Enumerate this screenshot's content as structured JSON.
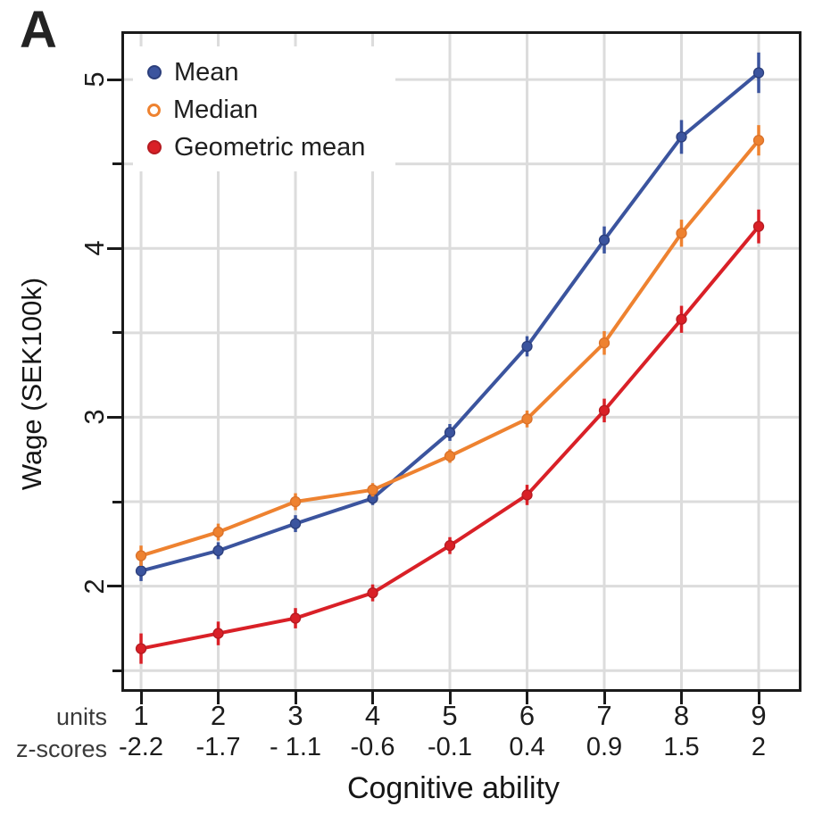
{
  "panel": {
    "label": "A"
  },
  "chart_data": {
    "type": "line",
    "title": "",
    "xlabel": "Cognitive ability",
    "ylabel": "Wage (SEK100k)",
    "x_units": [
      1,
      2,
      3,
      4,
      5,
      6,
      7,
      8,
      9
    ],
    "x_zscores": [
      "-2.2",
      "-1.7",
      "- 1.1",
      "-0.6",
      "-0.1",
      "0.4",
      "0.9",
      "1.5",
      "2"
    ],
    "xlim": [
      0.78,
      9.52
    ],
    "ylim": [
      1.39,
      5.27
    ],
    "y_ticks_major": [
      2,
      3,
      4,
      5
    ],
    "y_ticks_minor": [
      1.5,
      2.5,
      3.5,
      4.5
    ],
    "y_gridlines": [
      1.5,
      2,
      2.5,
      3,
      3.5,
      4,
      4.5,
      5
    ],
    "grid": true,
    "legend_position": "top-left",
    "series": [
      {
        "name": "Mean",
        "color": "#3B549E",
        "edge": "#2C3F7C",
        "marker": "filled-circle",
        "values": [
          2.09,
          2.21,
          2.37,
          2.52,
          2.91,
          3.42,
          4.05,
          4.66,
          5.04
        ],
        "error": [
          0.06,
          0.05,
          0.05,
          0.04,
          0.05,
          0.06,
          0.08,
          0.1,
          0.12
        ]
      },
      {
        "name": "Median",
        "color": "#EE8230",
        "edge": "#D9712A",
        "marker": "open-circle",
        "values": [
          2.18,
          2.32,
          2.5,
          2.57,
          2.77,
          2.99,
          3.44,
          4.09,
          4.64
        ],
        "error": [
          0.06,
          0.05,
          0.05,
          0.04,
          0.04,
          0.05,
          0.07,
          0.08,
          0.09
        ]
      },
      {
        "name": "Geometric mean",
        "color": "#D92027",
        "edge": "#B51B21",
        "marker": "filled-circle",
        "values": [
          1.63,
          1.72,
          1.81,
          1.96,
          2.24,
          2.54,
          3.04,
          3.58,
          4.13
        ],
        "error": [
          0.09,
          0.07,
          0.06,
          0.05,
          0.05,
          0.06,
          0.07,
          0.08,
          0.1
        ]
      }
    ]
  },
  "axis_rows": {
    "units_label": "units",
    "zscores_label": "z-scores"
  },
  "colors": {
    "grid": "#DCDCDC",
    "frame": "#1A1A1A",
    "text": "#1F1F1F",
    "muted": "#3A3A3A",
    "background": "#FFFFFF"
  }
}
